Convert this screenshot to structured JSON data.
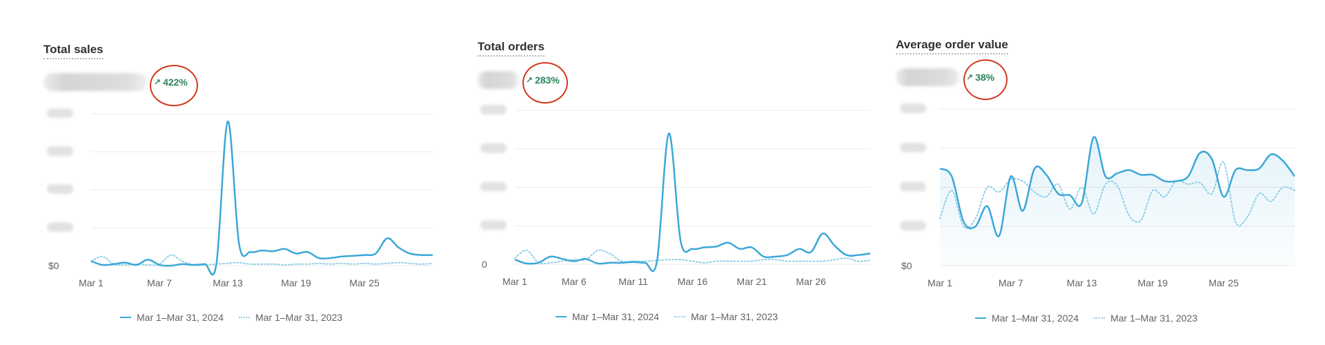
{
  "colors": {
    "current_series": "#3ba7d7",
    "previous_series": "#8fcfe8",
    "change_positive": "#29845a",
    "annotation_circle": "#d1381c",
    "grid": "#ebebeb"
  },
  "legend": {
    "current_label": "Mar 1–Mar 31, 2024",
    "previous_label": "Mar 1–Mar 31, 2023"
  },
  "panels": [
    {
      "title": "Total sales",
      "value_redacted": true,
      "change": "422%",
      "change_icon": "arrow-up-right-icon",
      "annotated": true
    },
    {
      "title": "Total orders",
      "value_redacted": true,
      "change": "283%",
      "change_icon": "arrow-up-right-icon",
      "annotated": true
    },
    {
      "title": "Average order value",
      "value_redacted": true,
      "change": "38%",
      "change_icon": "arrow-up-right-icon",
      "annotated": true
    }
  ],
  "chart_data": [
    {
      "type": "line",
      "title": "Total sales",
      "x": [
        "Mar 1",
        "Mar 2",
        "Mar 3",
        "Mar 4",
        "Mar 5",
        "Mar 6",
        "Mar 7",
        "Mar 8",
        "Mar 9",
        "Mar 10",
        "Mar 11",
        "Mar 12",
        "Mar 13",
        "Mar 14",
        "Mar 15",
        "Mar 16",
        "Mar 17",
        "Mar 18",
        "Mar 19",
        "Mar 20",
        "Mar 21",
        "Mar 22",
        "Mar 23",
        "Mar 24",
        "Mar 25",
        "Mar 26",
        "Mar 27",
        "Mar 28",
        "Mar 29",
        "Mar 30",
        "Mar 31"
      ],
      "x_tick_labels": [
        "Mar 1",
        "Mar 7",
        "Mar 13",
        "Mar 19",
        "Mar 25"
      ],
      "y_tick_labels": [
        "$0"
      ],
      "y_ticks_redacted": true,
      "ylim": [
        0,
        100
      ],
      "grid": true,
      "legend_position": "bottom",
      "area_fill": false,
      "series": [
        {
          "name": "Mar 1–Mar 31, 2024",
          "style": "solid",
          "values": [
            3,
            0.5,
            1,
            2,
            0.5,
            4,
            0.5,
            0,
            1,
            0.5,
            1,
            1,
            95,
            14,
            9,
            10,
            9.5,
            11,
            8,
            9,
            5,
            5,
            6,
            6.5,
            7,
            8,
            18,
            12,
            8,
            7,
            7
          ]
        },
        {
          "name": "Mar 1–Mar 31, 2023",
          "style": "dotted",
          "values": [
            3,
            6,
            1,
            0.5,
            1,
            0.5,
            1,
            7,
            3,
            0.5,
            0.5,
            1,
            1.5,
            2,
            1,
            1,
            1,
            0.5,
            1,
            1,
            1.5,
            1,
            1.5,
            1,
            1.5,
            1,
            1.5,
            2,
            1.5,
            1,
            1.5
          ]
        }
      ]
    },
    {
      "type": "line",
      "title": "Total orders",
      "x": [
        "Mar 1",
        "Mar 2",
        "Mar 3",
        "Mar 4",
        "Mar 5",
        "Mar 6",
        "Mar 7",
        "Mar 8",
        "Mar 9",
        "Mar 10",
        "Mar 11",
        "Mar 12",
        "Mar 13",
        "Mar 14",
        "Mar 15",
        "Mar 16",
        "Mar 17",
        "Mar 18",
        "Mar 19",
        "Mar 20",
        "Mar 21",
        "Mar 22",
        "Mar 23",
        "Mar 24",
        "Mar 25",
        "Mar 26",
        "Mar 27",
        "Mar 28",
        "Mar 29",
        "Mar 30",
        "Mar 31"
      ],
      "x_tick_labels": [
        "Mar 1",
        "Mar 6",
        "Mar 11",
        "Mar 16",
        "Mar 21",
        "Mar 26"
      ],
      "y_tick_labels": [
        "0"
      ],
      "y_ticks_redacted": true,
      "ylim": [
        0,
        100
      ],
      "grid": true,
      "legend_position": "bottom",
      "area_fill": false,
      "series": [
        {
          "name": "Mar 1–Mar 31, 2024",
          "style": "solid",
          "values": [
            3,
            0.5,
            1,
            5,
            3.5,
            2,
            3.5,
            0.5,
            1,
            1,
            1.5,
            1,
            2,
            85,
            15,
            10,
            11,
            11.5,
            14,
            10,
            11,
            5,
            5,
            6,
            10,
            8,
            20,
            12,
            6,
            6,
            7
          ]
        },
        {
          "name": "Mar 1–Mar 31, 2023",
          "style": "dotted",
          "values": [
            4,
            9,
            1,
            1,
            2,
            3,
            3,
            9,
            7,
            2,
            2,
            2,
            2.5,
            3,
            3,
            2,
            1,
            2,
            2,
            2,
            2,
            3,
            3,
            2,
            2,
            2,
            2,
            3,
            4,
            2,
            2.5
          ]
        }
      ]
    },
    {
      "type": "line",
      "title": "Average order value",
      "x": [
        "Mar 1",
        "Mar 2",
        "Mar 3",
        "Mar 4",
        "Mar 5",
        "Mar 6",
        "Mar 7",
        "Mar 8",
        "Mar 9",
        "Mar 10",
        "Mar 11",
        "Mar 12",
        "Mar 13",
        "Mar 14",
        "Mar 15",
        "Mar 16",
        "Mar 17",
        "Mar 18",
        "Mar 19",
        "Mar 20",
        "Mar 21",
        "Mar 22",
        "Mar 23",
        "Mar 24",
        "Mar 25",
        "Mar 26",
        "Mar 27",
        "Mar 28",
        "Mar 29",
        "Mar 30",
        "Mar 31"
      ],
      "x_tick_labels": [
        "Mar 1",
        "Mar 7",
        "Mar 13",
        "Mar 19",
        "Mar 25"
      ],
      "y_tick_labels": [
        "$0"
      ],
      "y_ticks_redacted": true,
      "ylim": [
        0,
        100
      ],
      "grid": true,
      "legend_position": "bottom",
      "area_fill": true,
      "series": [
        {
          "name": "Mar 1–Mar 31, 2024",
          "style": "solid",
          "values": [
            62,
            57,
            28,
            25,
            38,
            19,
            57,
            35,
            62,
            58,
            46,
            45,
            40,
            82,
            57,
            59,
            61,
            58,
            58,
            54,
            54,
            57,
            72,
            68,
            44,
            61,
            61,
            62,
            71,
            67,
            57
          ]
        },
        {
          "name": "Mar 1–Mar 31, 2023",
          "style": "dotted",
          "values": [
            30,
            48,
            25,
            30,
            50,
            47,
            55,
            54,
            47,
            44,
            52,
            36,
            50,
            33,
            52,
            51,
            32,
            29,
            48,
            44,
            54,
            52,
            53,
            46,
            66,
            28,
            31,
            46,
            41,
            50,
            48
          ]
        }
      ]
    }
  ]
}
